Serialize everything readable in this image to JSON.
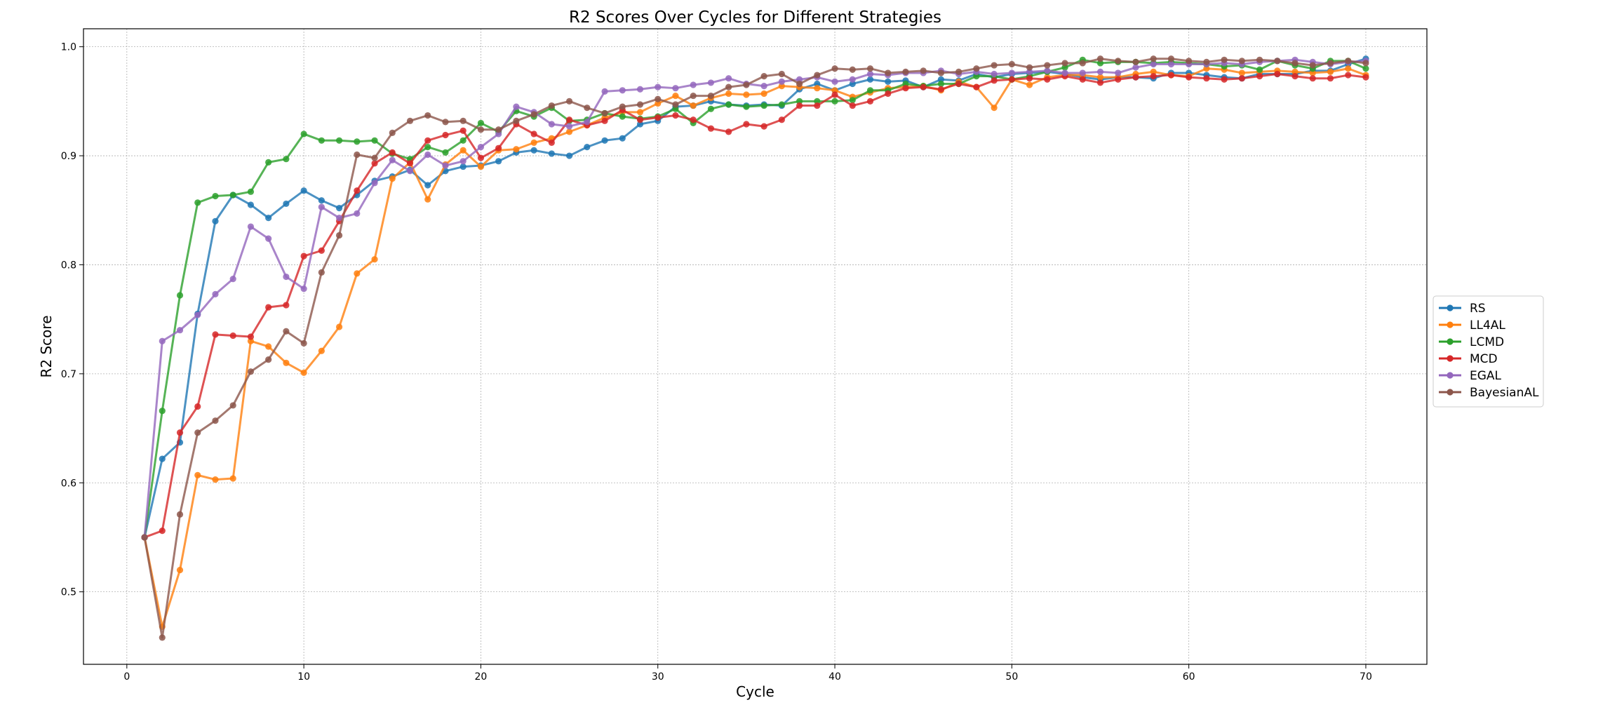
{
  "chart_data": {
    "type": "line",
    "title": "R2 Scores Over Cycles for Different Strategies",
    "xlabel": "Cycle",
    "ylabel": "R2 Score",
    "xlim": [
      -2.45,
      73.45
    ],
    "ylim": [
      0.4335,
      1.0165
    ],
    "xticks": [
      0,
      10,
      20,
      30,
      40,
      50,
      60,
      70
    ],
    "yticks": [
      0.5,
      0.6,
      0.7,
      0.8,
      0.9,
      1.0
    ],
    "grid": true,
    "legend_position": "right",
    "x": [
      1,
      2,
      3,
      4,
      5,
      6,
      7,
      8,
      9,
      10,
      11,
      12,
      13,
      14,
      15,
      16,
      17,
      18,
      19,
      20,
      21,
      22,
      23,
      24,
      25,
      26,
      27,
      28,
      29,
      30,
      31,
      32,
      33,
      34,
      35,
      36,
      37,
      38,
      39,
      40,
      41,
      42,
      43,
      44,
      45,
      46,
      47,
      48,
      49,
      50,
      51,
      52,
      53,
      54,
      55,
      56,
      57,
      58,
      59,
      60,
      61,
      62,
      63,
      64,
      65,
      66,
      67,
      68,
      69,
      70
    ],
    "series": [
      {
        "name": "RS",
        "color": "#1f77b4",
        "values": [
          0.55,
          0.622,
          0.637,
          0.755,
          0.84,
          0.864,
          0.855,
          0.843,
          0.856,
          0.868,
          0.859,
          0.852,
          0.864,
          0.877,
          0.881,
          0.887,
          0.873,
          0.886,
          0.89,
          0.891,
          0.895,
          0.903,
          0.905,
          0.902,
          0.9,
          0.908,
          0.914,
          0.916,
          0.929,
          0.932,
          0.945,
          0.946,
          0.95,
          0.947,
          0.946,
          0.947,
          0.946,
          0.961,
          0.966,
          0.96,
          0.966,
          0.97,
          0.968,
          0.969,
          0.963,
          0.97,
          0.969,
          0.975,
          0.972,
          0.975,
          0.976,
          0.977,
          0.975,
          0.972,
          0.97,
          0.972,
          0.972,
          0.971,
          0.976,
          0.976,
          0.974,
          0.972,
          0.971,
          0.975,
          0.975,
          0.975,
          0.978,
          0.978,
          0.984,
          0.989
        ]
      },
      {
        "name": "LL4AL",
        "color": "#ff7f0e",
        "values": [
          0.55,
          0.468,
          0.52,
          0.607,
          0.603,
          0.604,
          0.73,
          0.725,
          0.71,
          0.701,
          0.721,
          0.743,
          0.792,
          0.805,
          0.879,
          0.894,
          0.86,
          0.892,
          0.905,
          0.89,
          0.905,
          0.906,
          0.912,
          0.916,
          0.922,
          0.928,
          0.935,
          0.94,
          0.94,
          0.948,
          0.955,
          0.946,
          0.953,
          0.957,
          0.956,
          0.957,
          0.964,
          0.963,
          0.962,
          0.96,
          0.954,
          0.958,
          0.962,
          0.963,
          0.964,
          0.96,
          0.968,
          0.963,
          0.944,
          0.97,
          0.965,
          0.972,
          0.974,
          0.974,
          0.972,
          0.972,
          0.975,
          0.977,
          0.974,
          0.973,
          0.98,
          0.979,
          0.976,
          0.977,
          0.978,
          0.977,
          0.976,
          0.977,
          0.98,
          0.974
        ]
      },
      {
        "name": "LCMD",
        "color": "#2ca02c",
        "values": [
          0.55,
          0.666,
          0.772,
          0.857,
          0.863,
          0.864,
          0.867,
          0.894,
          0.897,
          0.92,
          0.914,
          0.914,
          0.913,
          0.914,
          0.902,
          0.897,
          0.908,
          0.903,
          0.914,
          0.93,
          0.922,
          0.941,
          0.936,
          0.944,
          0.932,
          0.933,
          0.939,
          0.936,
          0.934,
          0.936,
          0.943,
          0.93,
          0.943,
          0.947,
          0.945,
          0.946,
          0.947,
          0.95,
          0.95,
          0.95,
          0.951,
          0.96,
          0.96,
          0.966,
          0.964,
          0.966,
          0.966,
          0.973,
          0.973,
          0.97,
          0.973,
          0.977,
          0.981,
          0.988,
          0.985,
          0.986,
          0.986,
          0.985,
          0.986,
          0.985,
          0.984,
          0.982,
          0.983,
          0.979,
          0.987,
          0.983,
          0.98,
          0.987,
          0.987,
          0.98
        ]
      },
      {
        "name": "MCD",
        "color": "#d62728",
        "values": [
          0.55,
          0.556,
          0.646,
          0.67,
          0.736,
          0.735,
          0.734,
          0.761,
          0.763,
          0.808,
          0.813,
          0.84,
          0.868,
          0.893,
          0.903,
          0.893,
          0.914,
          0.919,
          0.923,
          0.898,
          0.907,
          0.929,
          0.92,
          0.912,
          0.933,
          0.928,
          0.932,
          0.942,
          0.933,
          0.935,
          0.937,
          0.933,
          0.925,
          0.922,
          0.929,
          0.927,
          0.933,
          0.946,
          0.946,
          0.956,
          0.946,
          0.95,
          0.957,
          0.962,
          0.963,
          0.961,
          0.966,
          0.963,
          0.969,
          0.97,
          0.971,
          0.97,
          0.973,
          0.97,
          0.967,
          0.97,
          0.972,
          0.973,
          0.974,
          0.972,
          0.971,
          0.97,
          0.971,
          0.973,
          0.975,
          0.973,
          0.971,
          0.971,
          0.974,
          0.972
        ]
      },
      {
        "name": "EGAL",
        "color": "#9467bd",
        "values": [
          0.55,
          0.73,
          0.74,
          0.754,
          0.773,
          0.787,
          0.835,
          0.824,
          0.789,
          0.778,
          0.853,
          0.843,
          0.847,
          0.875,
          0.896,
          0.886,
          0.901,
          0.891,
          0.895,
          0.908,
          0.92,
          0.945,
          0.94,
          0.929,
          0.927,
          0.931,
          0.959,
          0.96,
          0.961,
          0.963,
          0.962,
          0.965,
          0.967,
          0.971,
          0.966,
          0.964,
          0.968,
          0.97,
          0.972,
          0.968,
          0.97,
          0.975,
          0.974,
          0.976,
          0.976,
          0.978,
          0.975,
          0.977,
          0.975,
          0.976,
          0.977,
          0.978,
          0.976,
          0.976,
          0.977,
          0.976,
          0.981,
          0.984,
          0.984,
          0.984,
          0.984,
          0.985,
          0.984,
          0.986,
          0.987,
          0.988,
          0.986,
          0.984,
          0.986,
          0.987
        ]
      },
      {
        "name": "BayesianAL",
        "color": "#8c564b",
        "values": [
          0.55,
          0.458,
          0.571,
          0.646,
          0.657,
          0.671,
          0.702,
          0.713,
          0.739,
          0.728,
          0.793,
          0.827,
          0.901,
          0.898,
          0.921,
          0.932,
          0.937,
          0.931,
          0.932,
          0.924,
          0.924,
          0.932,
          0.938,
          0.946,
          0.95,
          0.944,
          0.939,
          0.945,
          0.947,
          0.952,
          0.947,
          0.955,
          0.955,
          0.963,
          0.965,
          0.973,
          0.975,
          0.966,
          0.974,
          0.98,
          0.979,
          0.98,
          0.976,
          0.977,
          0.978,
          0.976,
          0.977,
          0.98,
          0.983,
          0.984,
          0.981,
          0.983,
          0.985,
          0.985,
          0.989,
          0.987,
          0.986,
          0.989,
          0.989,
          0.987,
          0.986,
          0.988,
          0.987,
          0.988,
          0.987,
          0.985,
          0.983,
          0.985,
          0.987,
          0.985
        ]
      }
    ]
  }
}
